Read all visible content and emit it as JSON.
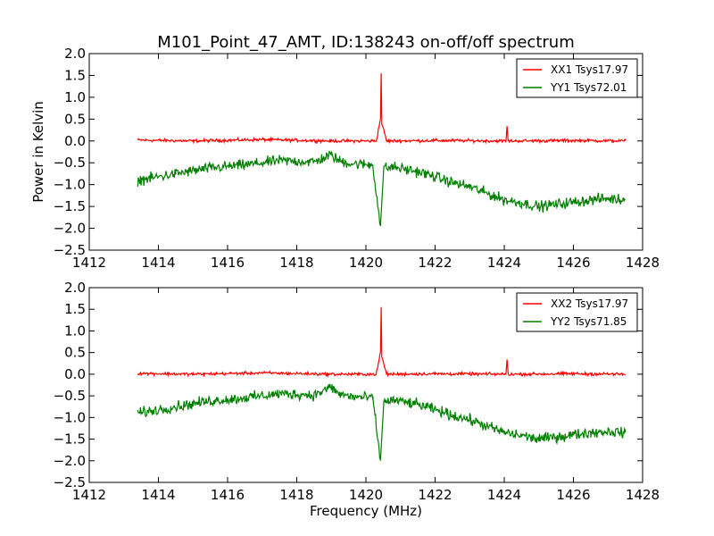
{
  "title": "M101_Point_47_AMT, ID:138243 on-off/off spectrum",
  "chart_data": [
    {
      "type": "line",
      "xlabel": "",
      "ylabel": "Power in Kelvin",
      "xlim": [
        1412,
        1428
      ],
      "ylim": [
        -2.5,
        2.0
      ],
      "xticks": [
        "1412",
        "1414",
        "1416",
        "1418",
        "1420",
        "1422",
        "1424",
        "1426",
        "1428"
      ],
      "yticks": [
        "2.0",
        "1.5",
        "1.0",
        "0.5",
        "0.0",
        "−0.5",
        "−1.0",
        "−1.5",
        "−2.0",
        "−2.5"
      ],
      "legend_position": "top-right",
      "grid": false,
      "series": [
        {
          "name": "XX1 Tsys17.97",
          "color": "#ff0000",
          "x": [
            1413.4,
            1415.0,
            1417.0,
            1419.0,
            1420.3,
            1420.42,
            1420.44,
            1420.46,
            1420.6,
            1422.0,
            1424.05,
            1424.08,
            1424.11,
            1426.0,
            1427.5
          ],
          "y": [
            0.02,
            0.0,
            0.03,
            0.0,
            0.0,
            0.5,
            1.55,
            0.4,
            0.0,
            0.01,
            0.0,
            0.34,
            0.0,
            0.01,
            0.0
          ]
        },
        {
          "name": "YY1 Tsys72.01",
          "color": "#007f00",
          "x": [
            1413.4,
            1413.8,
            1414.5,
            1415.5,
            1416.5,
            1417.5,
            1418.5,
            1419.0,
            1419.2,
            1419.6,
            1420.2,
            1420.42,
            1420.52,
            1420.8,
            1421.5,
            1422.0,
            1422.5,
            1423.0,
            1423.5,
            1424.0,
            1424.5,
            1425.0,
            1425.5,
            1426.0,
            1426.5,
            1427.0,
            1427.5
          ],
          "y": [
            -0.9,
            -0.85,
            -0.75,
            -0.62,
            -0.55,
            -0.45,
            -0.48,
            -0.32,
            -0.45,
            -0.52,
            -0.55,
            -1.95,
            -0.62,
            -0.6,
            -0.7,
            -0.82,
            -0.95,
            -1.05,
            -1.2,
            -1.35,
            -1.42,
            -1.5,
            -1.45,
            -1.4,
            -1.35,
            -1.32,
            -1.35
          ]
        }
      ]
    },
    {
      "type": "line",
      "xlabel": "Frequency (MHz)",
      "ylabel": "",
      "xlim": [
        1412,
        1428
      ],
      "ylim": [
        -2.5,
        2.0
      ],
      "xticks": [
        "1412",
        "1414",
        "1416",
        "1418",
        "1420",
        "1422",
        "1424",
        "1426",
        "1428"
      ],
      "yticks": [
        "2.0",
        "1.5",
        "1.0",
        "0.5",
        "0.0",
        "−0.5",
        "−1.0",
        "−1.5",
        "−2.0",
        "−2.5"
      ],
      "legend_position": "top-right",
      "grid": false,
      "series": [
        {
          "name": "XX2 Tsys17.97",
          "color": "#ff0000",
          "x": [
            1413.4,
            1415.0,
            1417.0,
            1419.0,
            1420.3,
            1420.42,
            1420.44,
            1420.46,
            1420.6,
            1422.0,
            1424.05,
            1424.08,
            1424.11,
            1426.0,
            1427.5
          ],
          "y": [
            0.02,
            0.0,
            0.03,
            0.0,
            0.0,
            0.5,
            1.55,
            0.4,
            0.0,
            0.01,
            0.0,
            0.34,
            0.0,
            0.01,
            0.0
          ]
        },
        {
          "name": "YY2 Tsys71.85",
          "color": "#007f00",
          "x": [
            1413.4,
            1413.8,
            1414.5,
            1415.5,
            1416.5,
            1417.5,
            1418.5,
            1419.0,
            1419.2,
            1419.6,
            1420.2,
            1420.42,
            1420.52,
            1420.8,
            1421.5,
            1422.0,
            1422.5,
            1423.0,
            1423.5,
            1424.0,
            1424.5,
            1425.0,
            1425.5,
            1426.0,
            1426.5,
            1427.0,
            1427.5
          ],
          "y": [
            -0.9,
            -0.85,
            -0.75,
            -0.62,
            -0.55,
            -0.45,
            -0.48,
            -0.3,
            -0.45,
            -0.52,
            -0.55,
            -2.0,
            -0.62,
            -0.6,
            -0.7,
            -0.82,
            -0.95,
            -1.05,
            -1.2,
            -1.35,
            -1.42,
            -1.5,
            -1.45,
            -1.4,
            -1.35,
            -1.32,
            -1.35
          ]
        }
      ]
    }
  ]
}
